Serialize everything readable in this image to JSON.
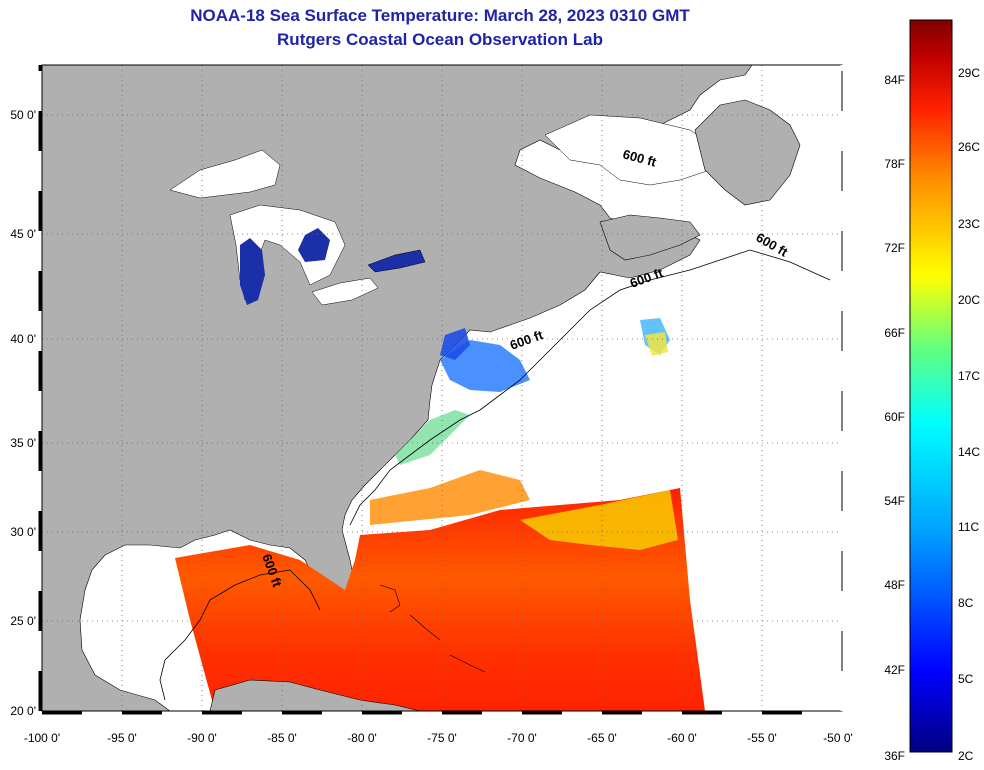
{
  "header": {
    "title": "NOAA-18 Sea Surface Temperature:  March 28, 2023 0310 GMT",
    "subtitle": "Rutgers Coastal Ocean Observation Lab"
  },
  "map": {
    "lon_range": [
      -100,
      -50
    ],
    "lat_range": [
      20,
      52.5
    ],
    "lon_ticks": [
      "-100 0'",
      "-95 0'",
      "-90 0'",
      "-85 0'",
      "-80 0'",
      "-75 0'",
      "-70 0'",
      "-65 0'",
      "-60 0'",
      "-55 0'",
      "-50 0'"
    ],
    "lat_ticks": [
      "20 0'",
      "25 0'",
      "30 0'",
      "35 0'",
      "40 0'",
      "45 0'",
      "50 0'"
    ],
    "gridlines": "dotted",
    "contour_label": "600 ft",
    "colors": {
      "land": "#b0b0b0",
      "no_data": "#ffffff",
      "title": "#1f24a6"
    }
  },
  "colorbar": {
    "fahrenheit_labels": [
      "84F",
      "78F",
      "72F",
      "66F",
      "60F",
      "54F",
      "48F",
      "42F",
      "36F"
    ],
    "celsius_labels": [
      "29C",
      "26C",
      "23C",
      "20C",
      "17C",
      "14C",
      "11C",
      "8C",
      "5C",
      "2C"
    ],
    "colors": [
      "#000080",
      "#0000ff",
      "#00a0ff",
      "#00ffff",
      "#60ff80",
      "#ffff00",
      "#ff9000",
      "#ff2000",
      "#c00000",
      "#800000"
    ]
  }
}
